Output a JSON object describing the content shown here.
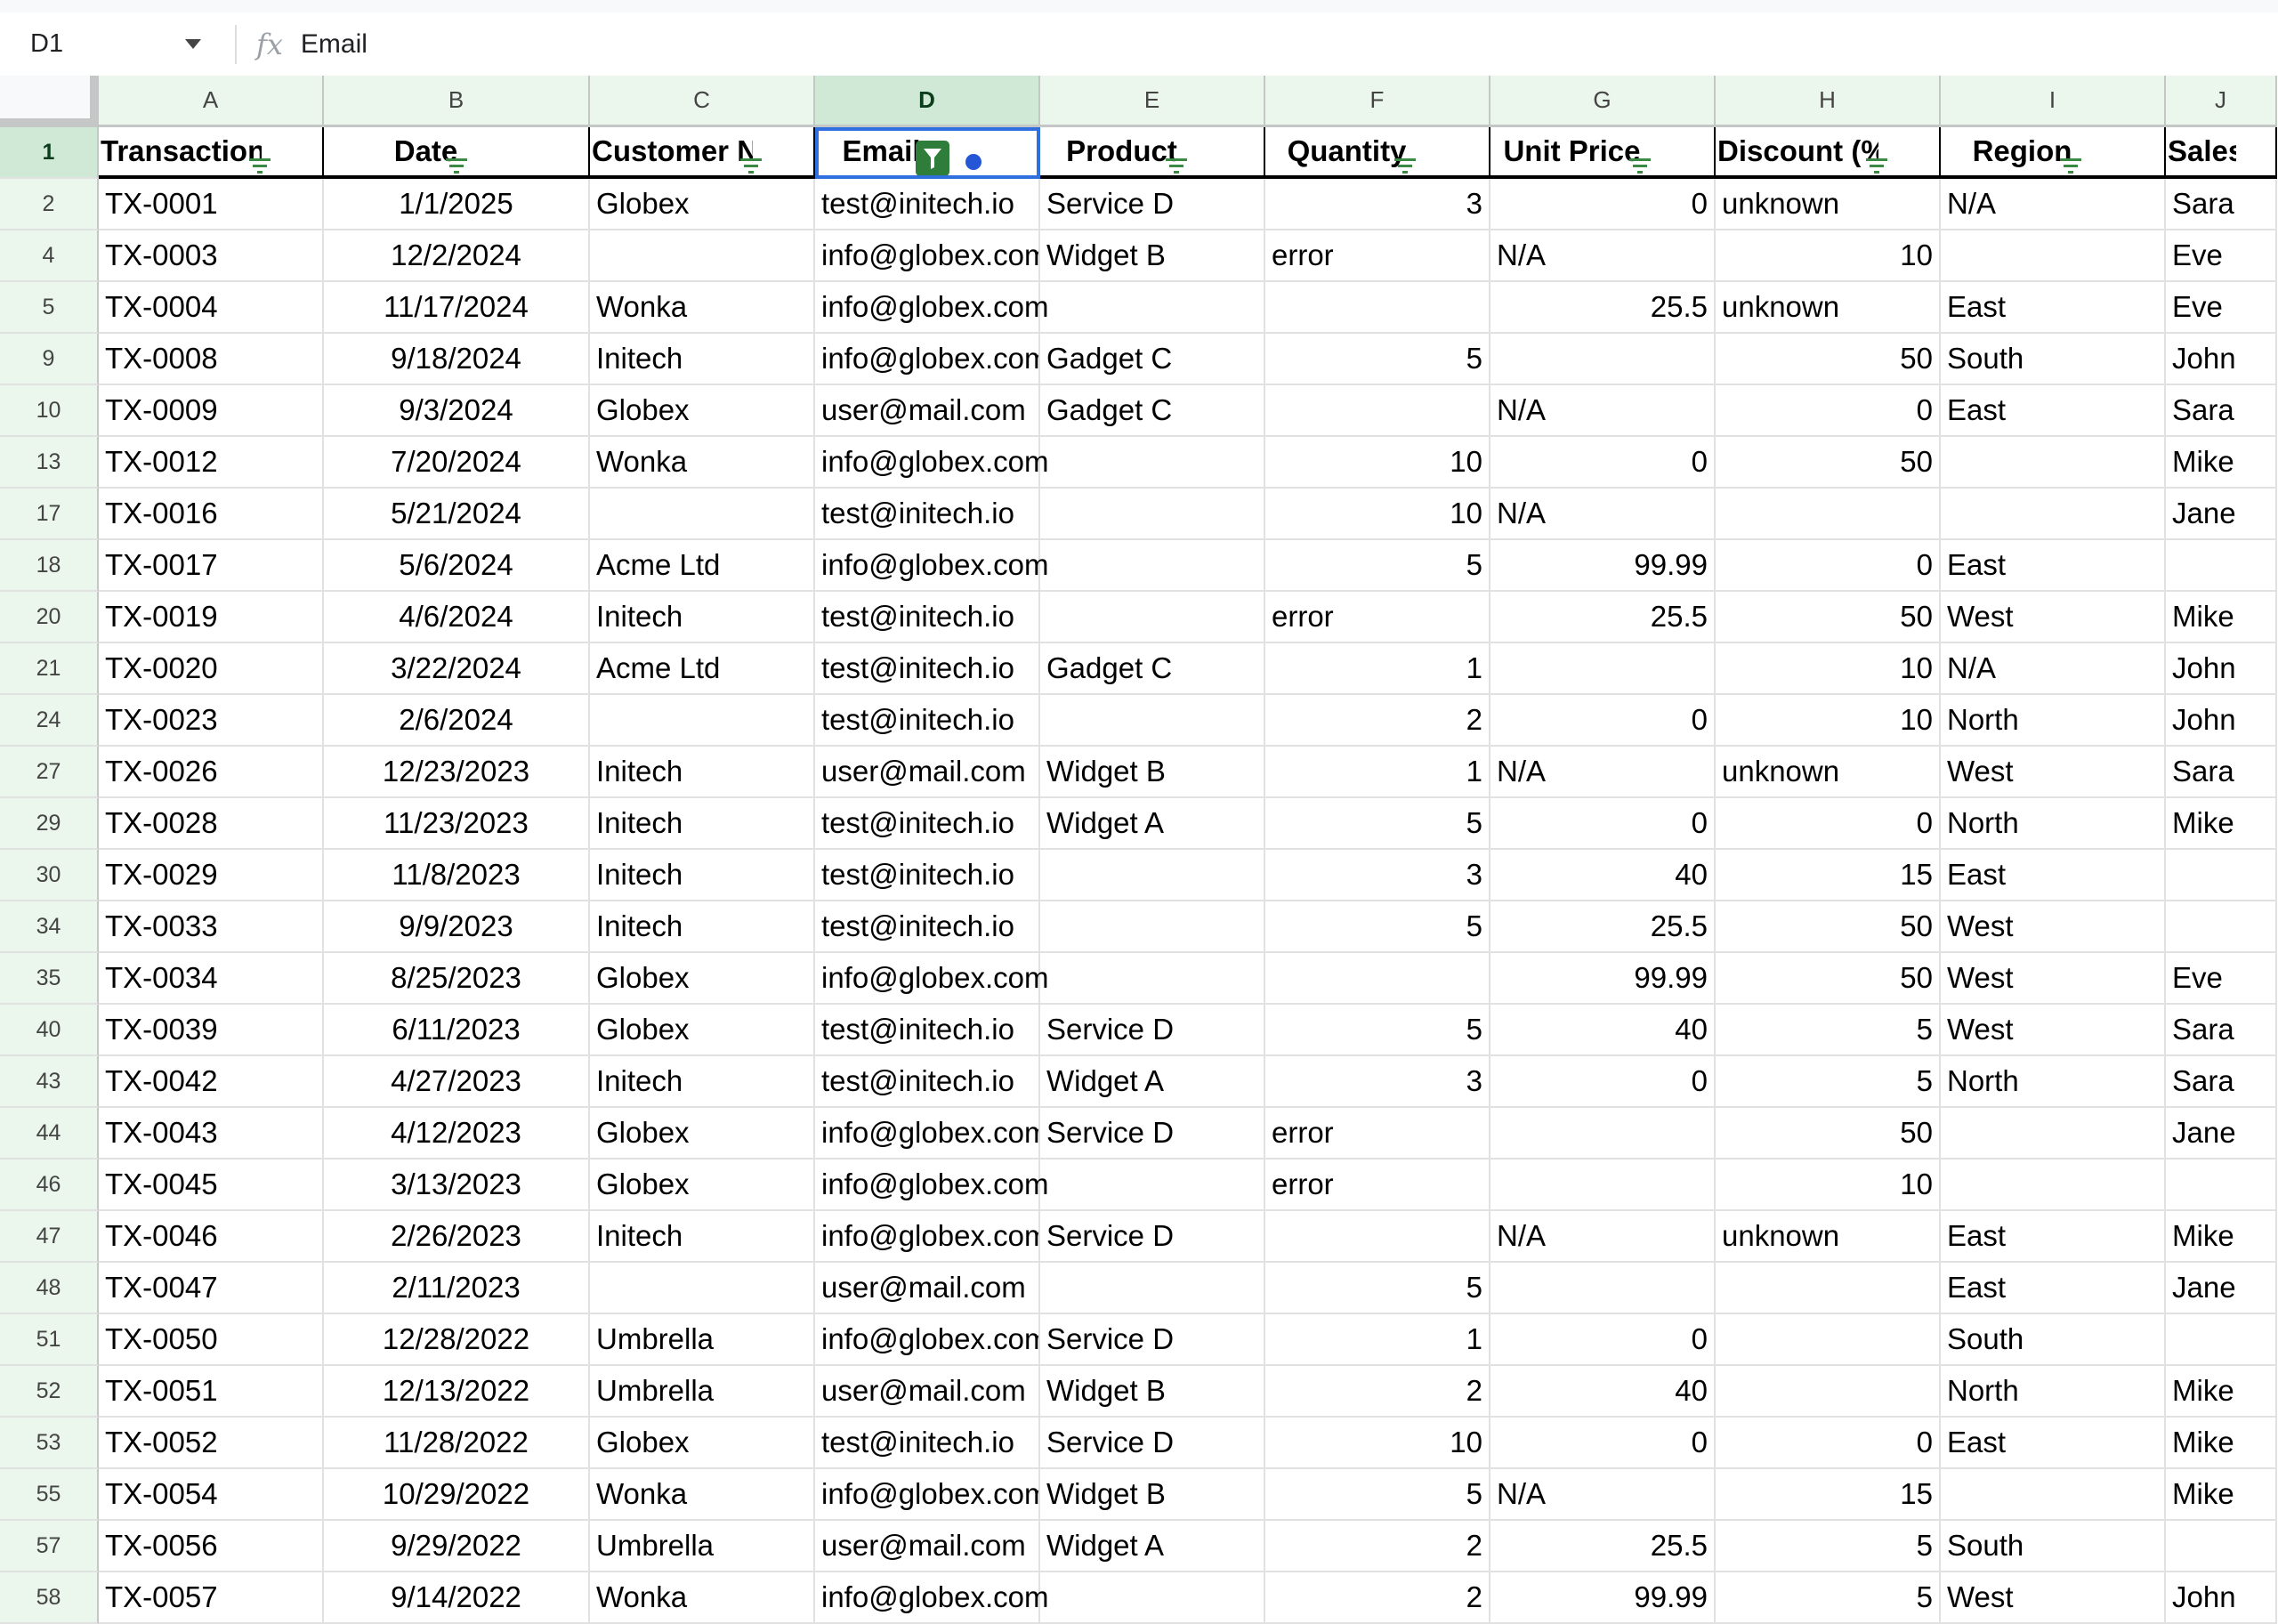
{
  "formula_bar": {
    "name_box": "D1",
    "fx_label": "fx",
    "value": "Email"
  },
  "columns": [
    "A",
    "B",
    "C",
    "D",
    "E",
    "F",
    "G",
    "H",
    "I",
    "J"
  ],
  "selected_column": "D",
  "active_filter_column": "D",
  "headers": [
    "Transaction ID",
    "Date",
    "Customer Name",
    "Email",
    "Product",
    "Quantity",
    "Unit Price",
    "Discount (%)",
    "Region",
    "Sales Rep"
  ],
  "rows": [
    {
      "n": "2",
      "c": [
        "TX-0001",
        "1/1/2025",
        "Globex",
        "test@initech.io",
        "Service D",
        "3",
        "0",
        "unknown",
        "N/A",
        "Sara"
      ]
    },
    {
      "n": "4",
      "c": [
        "TX-0003",
        "12/2/2024",
        "",
        "info@globex.com",
        "Widget B",
        "error",
        "N/A",
        "10",
        "",
        "Eve"
      ]
    },
    {
      "n": "5",
      "c": [
        "TX-0004",
        "11/17/2024",
        "Wonka",
        "info@globex.com",
        "",
        "",
        "25.5",
        "unknown",
        "East",
        "Eve"
      ]
    },
    {
      "n": "9",
      "c": [
        "TX-0008",
        "9/18/2024",
        "Initech",
        "info@globex.com",
        "Gadget C",
        "5",
        "",
        "50",
        "South",
        "John"
      ]
    },
    {
      "n": "10",
      "c": [
        "TX-0009",
        "9/3/2024",
        "Globex",
        "user@mail.com",
        "Gadget C",
        "",
        "N/A",
        "0",
        "East",
        "Sara"
      ]
    },
    {
      "n": "13",
      "c": [
        "TX-0012",
        "7/20/2024",
        "Wonka",
        "info@globex.com",
        "",
        "10",
        "0",
        "50",
        "",
        "Mike"
      ]
    },
    {
      "n": "17",
      "c": [
        "TX-0016",
        "5/21/2024",
        "",
        "test@initech.io",
        "",
        "10",
        "N/A",
        "",
        "",
        "Jane"
      ]
    },
    {
      "n": "18",
      "c": [
        "TX-0017",
        "5/6/2024",
        "Acme Ltd",
        "info@globex.com",
        "",
        "5",
        "99.99",
        "0",
        "East",
        ""
      ]
    },
    {
      "n": "20",
      "c": [
        "TX-0019",
        "4/6/2024",
        "Initech",
        "test@initech.io",
        "",
        "error",
        "25.5",
        "50",
        "West",
        "Mike"
      ]
    },
    {
      "n": "21",
      "c": [
        "TX-0020",
        "3/22/2024",
        "Acme Ltd",
        "test@initech.io",
        "Gadget C",
        "1",
        "",
        "10",
        "N/A",
        "John"
      ]
    },
    {
      "n": "24",
      "c": [
        "TX-0023",
        "2/6/2024",
        "",
        "test@initech.io",
        "",
        "2",
        "0",
        "10",
        "North",
        "John"
      ]
    },
    {
      "n": "27",
      "c": [
        "TX-0026",
        "12/23/2023",
        "Initech",
        "user@mail.com",
        "Widget B",
        "1",
        "N/A",
        "unknown",
        "West",
        "Sara"
      ]
    },
    {
      "n": "29",
      "c": [
        "TX-0028",
        "11/23/2023",
        "Initech",
        "test@initech.io",
        "Widget A",
        "5",
        "0",
        "0",
        "North",
        "Mike"
      ]
    },
    {
      "n": "30",
      "c": [
        "TX-0029",
        "11/8/2023",
        "Initech",
        "test@initech.io",
        "",
        "3",
        "40",
        "15",
        "East",
        ""
      ]
    },
    {
      "n": "34",
      "c": [
        "TX-0033",
        "9/9/2023",
        "Initech",
        "test@initech.io",
        "",
        "5",
        "25.5",
        "50",
        "West",
        ""
      ]
    },
    {
      "n": "35",
      "c": [
        "TX-0034",
        "8/25/2023",
        "Globex",
        "info@globex.com",
        "",
        "",
        "99.99",
        "50",
        "West",
        "Eve"
      ]
    },
    {
      "n": "40",
      "c": [
        "TX-0039",
        "6/11/2023",
        "Globex",
        "test@initech.io",
        "Service D",
        "5",
        "40",
        "5",
        "West",
        "Sara"
      ]
    },
    {
      "n": "43",
      "c": [
        "TX-0042",
        "4/27/2023",
        "Initech",
        "test@initech.io",
        "Widget A",
        "3",
        "0",
        "5",
        "North",
        "Sara"
      ]
    },
    {
      "n": "44",
      "c": [
        "TX-0043",
        "4/12/2023",
        "Globex",
        "info@globex.com",
        "Service D",
        "error",
        "",
        "50",
        "",
        "Jane"
      ]
    },
    {
      "n": "46",
      "c": [
        "TX-0045",
        "3/13/2023",
        "Globex",
        "info@globex.com",
        "",
        "error",
        "",
        "10",
        "",
        ""
      ]
    },
    {
      "n": "47",
      "c": [
        "TX-0046",
        "2/26/2023",
        "Initech",
        "info@globex.com",
        "Service D",
        "",
        "N/A",
        "unknown",
        "East",
        "Mike"
      ]
    },
    {
      "n": "48",
      "c": [
        "TX-0047",
        "2/11/2023",
        "",
        "user@mail.com",
        "",
        "5",
        "",
        "",
        "East",
        "Jane"
      ]
    },
    {
      "n": "51",
      "c": [
        "TX-0050",
        "12/28/2022",
        "Umbrella",
        "info@globex.com",
        "Service D",
        "1",
        "0",
        "",
        "South",
        ""
      ]
    },
    {
      "n": "52",
      "c": [
        "TX-0051",
        "12/13/2022",
        "Umbrella",
        "user@mail.com",
        "Widget B",
        "2",
        "40",
        "",
        "North",
        "Mike"
      ]
    },
    {
      "n": "53",
      "c": [
        "TX-0052",
        "11/28/2022",
        "Globex",
        "test@initech.io",
        "Service D",
        "10",
        "0",
        "0",
        "East",
        "Mike"
      ]
    },
    {
      "n": "55",
      "c": [
        "TX-0054",
        "10/29/2022",
        "Wonka",
        "info@globex.com",
        "Widget B",
        "5",
        "N/A",
        "15",
        "",
        "Mike"
      ]
    },
    {
      "n": "57",
      "c": [
        "TX-0056",
        "9/29/2022",
        "Umbrella",
        "user@mail.com",
        "Widget A",
        "2",
        "25.5",
        "5",
        "South",
        ""
      ]
    },
    {
      "n": "58",
      "c": [
        "TX-0057",
        "9/14/2022",
        "Wonka",
        "info@globex.com",
        "",
        "2",
        "99.99",
        "5",
        "West",
        "John"
      ]
    }
  ],
  "colors": {
    "accent_green": "#2f7d3a",
    "selection_blue": "#2f6fde",
    "header_bg": "#ebf6ec"
  }
}
